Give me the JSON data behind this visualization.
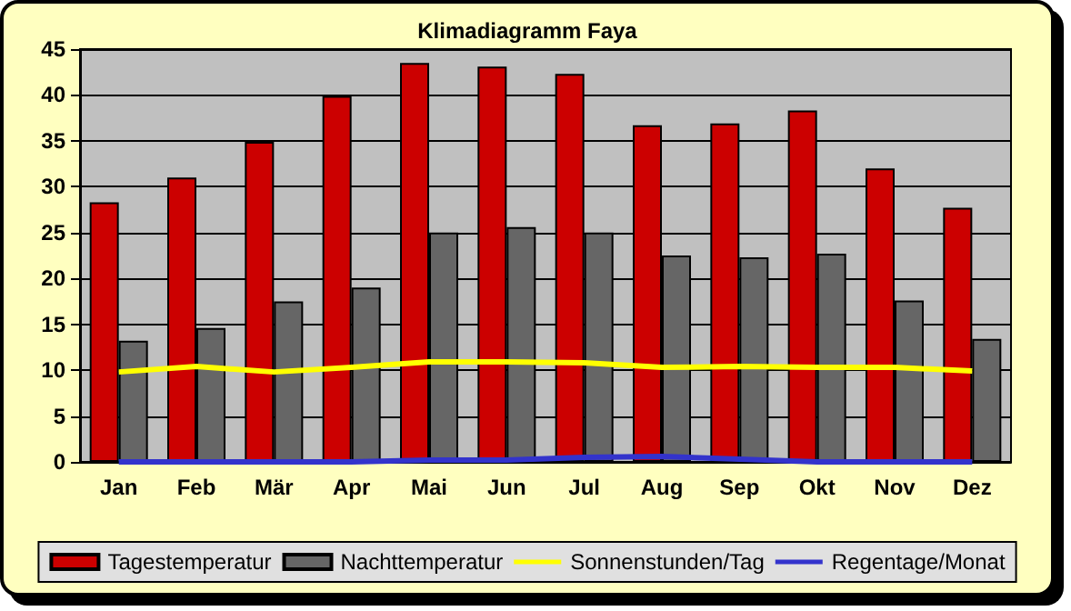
{
  "chart_data": {
    "type": "bar",
    "title": "Klimadiagramm Faya",
    "categories": [
      "Jan",
      "Feb",
      "Mär",
      "Apr",
      "Mai",
      "Jun",
      "Jul",
      "Aug",
      "Sep",
      "Okt",
      "Nov",
      "Dez"
    ],
    "series": [
      {
        "name": "Tagestemperatur",
        "color": "#cc0000",
        "values": [
          28.3,
          31,
          34.9,
          39.9,
          43.5,
          43.1,
          42.3,
          36.7,
          36.9,
          38.3,
          32,
          27.7
        ]
      },
      {
        "name": "Nachttemperatur",
        "color": "#666666",
        "values": [
          13.2,
          14.6,
          17.5,
          19,
          25,
          25.6,
          25,
          22.5,
          22.3,
          22.7,
          17.6,
          13.4
        ]
      },
      {
        "name": "Sonnenstunden/Tag",
        "type": "line",
        "color": "#ffff00",
        "values": [
          9.8,
          10.4,
          9.8,
          10.3,
          10.9,
          10.9,
          10.8,
          10.3,
          10.4,
          10.3,
          10.3,
          9.9
        ]
      },
      {
        "name": "Regentage/Monat",
        "type": "line",
        "color": "#3333cc",
        "values": [
          0,
          0,
          0,
          0,
          0.2,
          0.2,
          0.5,
          0.6,
          0.3,
          0,
          0,
          0
        ]
      }
    ],
    "ylim": [
      0,
      45
    ],
    "yticks": [
      0,
      5,
      10,
      15,
      20,
      25,
      30,
      35,
      40,
      45
    ],
    "grid": "y",
    "legend": "bottom",
    "marker": "none"
  }
}
